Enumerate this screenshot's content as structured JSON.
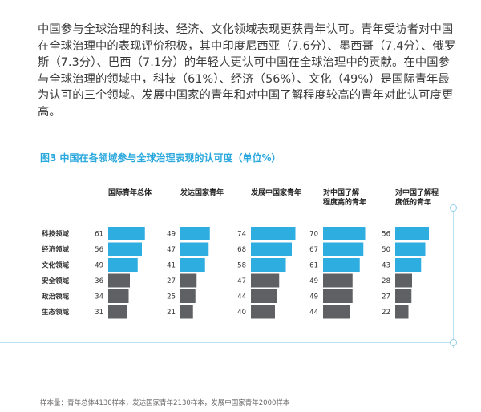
{
  "text": {
    "paragraph": "中国参与全球治理的科技、经济、文化领域表现更获青年认可。青年受访者对中国在全球治理中的表现评价积极，其中印度尼西亚（7.6分）、墨西哥（7.4分）、俄罗斯（7.3分）、巴西（7.1分）的年轻人更认可中国在全球治理中的贡献。在中国参与全球治理的领域中，科技（61%）、经济（56%）、文化（49%）是国际青年最为认可的三个领域。发展中国家的青年和对中国了解程度较高的青年对此认可度更高。",
    "figure_title": "图3 中国在各领域参与全球治理表现的认可度（单位%）",
    "footnote": "样本量：青年总体4130样本，发达国家青年2130样本，发展中国家青年2000样本"
  },
  "colors": {
    "highlight_bar": "#2eaee0",
    "other_bar": "#5f6064",
    "title": "#2ba8dd",
    "deco_line": "#b9e1f1"
  },
  "chart_data": {
    "type": "bar",
    "orientation": "horizontal",
    "title": "图3 中国在各领域参与全球治理表现的认可度（单位%）",
    "categories": [
      "科技领域",
      "经济领域",
      "文化领域",
      "安全领域",
      "政治领域",
      "生态领域"
    ],
    "highlighted_categories": [
      "科技领域",
      "经济领域",
      "文化领域"
    ],
    "series": [
      {
        "name": [
          "国际青年总体"
        ],
        "values": [
          61,
          56,
          49,
          36,
          34,
          31
        ]
      },
      {
        "name": [
          "发达国家青年"
        ],
        "values": [
          49,
          47,
          41,
          27,
          25,
          21
        ]
      },
      {
        "name": [
          "发展中国家青年"
        ],
        "values": [
          74,
          68,
          58,
          47,
          44,
          40
        ]
      },
      {
        "name": [
          "对中国了解",
          "程度高的青年"
        ],
        "values": [
          70,
          67,
          61,
          49,
          49,
          44
        ]
      },
      {
        "name": [
          "对中国了解程",
          "度低的青年"
        ],
        "values": [
          56,
          50,
          43,
          28,
          27,
          22
        ]
      }
    ],
    "legend": "none",
    "grid": false
  }
}
